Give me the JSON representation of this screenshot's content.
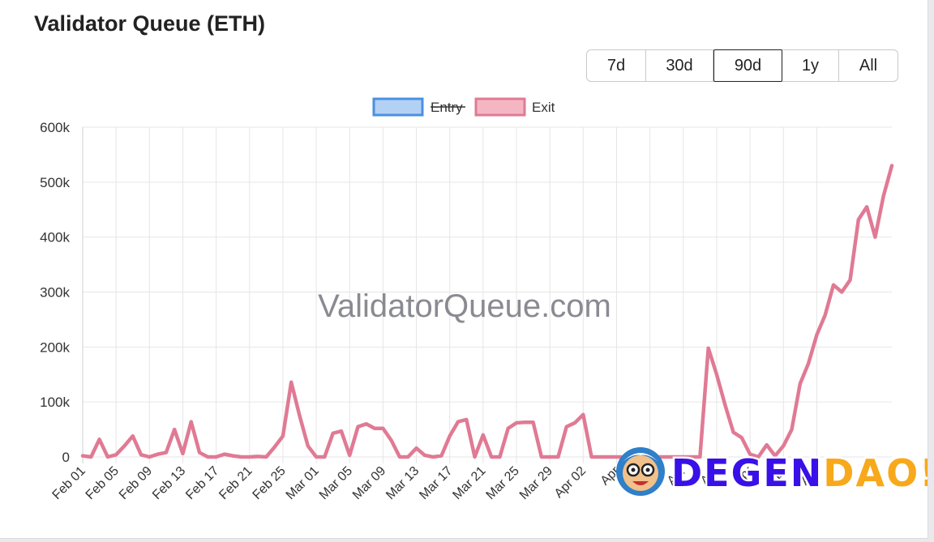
{
  "title": "Validator Queue (ETH)",
  "range_buttons": [
    {
      "label": "7d",
      "active": false
    },
    {
      "label": "30d",
      "active": false
    },
    {
      "label": "90d",
      "active": true
    },
    {
      "label": "1y",
      "active": false
    },
    {
      "label": "All",
      "active": false
    }
  ],
  "watermark": "ValidatorQueue.com",
  "logo": {
    "part1": "DEGEN",
    "part2": "DAO!",
    "color1": "#3a10e8",
    "color2": "#f7a91b"
  },
  "chart_data": {
    "type": "line",
    "x_start_date": "2025-02-01",
    "x_tick_labels": [
      "Feb 01",
      "Feb 05",
      "Feb 09",
      "Feb 13",
      "Feb 17",
      "Feb 21",
      "Feb 25",
      "Mar 01",
      "Mar 05",
      "Mar 09",
      "Mar 13",
      "Mar 17",
      "Mar 21",
      "Mar 25",
      "Mar 29",
      "Apr 02",
      "Apr",
      "Apr",
      "Apr",
      "Apr",
      "Apr",
      "Apr",
      "Apr"
    ],
    "y_tick_labels": [
      "0",
      "100k",
      "200k",
      "300k",
      "400k",
      "500k",
      "600k"
    ],
    "ylim": [
      0,
      600000
    ],
    "grid": true,
    "legend_position": "top",
    "series": [
      {
        "name": "Entry",
        "color": "#4a90e2",
        "fill": "#b3d1f5",
        "hidden": true,
        "values": []
      },
      {
        "name": "Exit",
        "color": "#e07a94",
        "fill": "#f4b6c3",
        "hidden": false,
        "values": [
          2000,
          0,
          32000,
          0,
          4000,
          20000,
          38000,
          4000,
          0,
          5000,
          8000,
          50000,
          6000,
          64000,
          8000,
          0,
          0,
          5000,
          2000,
          0,
          0,
          1000,
          0,
          18000,
          38000,
          136000,
          75000,
          20000,
          0,
          0,
          43000,
          47000,
          3000,
          55000,
          60000,
          52000,
          52000,
          30000,
          0,
          0,
          16000,
          3000,
          0,
          2000,
          38000,
          64000,
          68000,
          0,
          40000,
          0,
          0,
          52000,
          62000,
          63000,
          63000,
          0,
          0,
          0,
          55000,
          62000,
          77000,
          0,
          0,
          0,
          0,
          0,
          0,
          0,
          0,
          0,
          0,
          0,
          0,
          0,
          0,
          198000,
          150000,
          95000,
          45000,
          35000,
          5000,
          0,
          22000,
          2000,
          20000,
          50000,
          133000,
          170000,
          222000,
          258000,
          313000,
          300000,
          322000,
          432000,
          455000,
          400000,
          475000,
          530000
        ]
      }
    ]
  }
}
